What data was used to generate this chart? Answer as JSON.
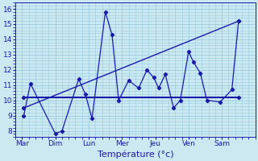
{
  "bg_color": "#cce8f0",
  "line_color": "#1a1aaa",
  "grid_color": "#99cce0",
  "xlabel": "Température (°c)",
  "xlabel_fontsize": 8,
  "yticks": [
    8,
    9,
    10,
    11,
    12,
    13,
    14,
    15,
    16
  ],
  "ylim": [
    7.6,
    16.4
  ],
  "xtick_labels": [
    "Mar",
    "Dim",
    "Lun",
    "Mer",
    "Jeu",
    "Ven",
    "Sam"
  ],
  "xtick_positions": [
    0,
    1,
    2,
    3,
    4,
    5,
    6
  ],
  "xlim": [
    -0.15,
    6.55
  ],
  "series1_x": [
    0.05,
    0.25,
    1.0,
    1.2,
    1.7,
    1.9,
    2.1,
    2.5,
    2.7,
    2.9,
    3.2,
    3.5,
    3.75,
    3.95,
    4.1,
    4.3,
    4.55,
    4.75,
    5.0,
    5.15,
    5.35,
    5.55,
    5.95,
    6.3,
    6.5
  ],
  "series1_y": [
    9.0,
    11.1,
    7.8,
    8.0,
    11.4,
    10.4,
    8.8,
    15.8,
    14.3,
    10.0,
    11.3,
    10.8,
    12.0,
    11.5,
    10.8,
    11.7,
    9.5,
    10.0,
    13.2,
    12.5,
    11.8,
    10.0,
    9.9,
    10.7,
    15.2
  ],
  "series2_x": [
    0.05,
    6.5
  ],
  "series2_y": [
    9.5,
    15.2
  ],
  "series3_x": [
    0.05,
    6.5
  ],
  "series3_y": [
    10.2,
    10.2
  ]
}
